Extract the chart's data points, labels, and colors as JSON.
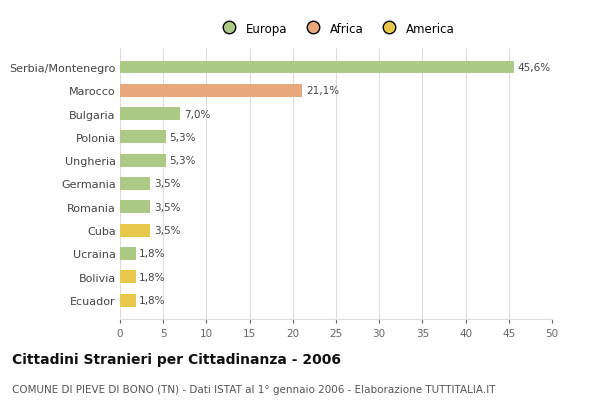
{
  "categories": [
    "Serbia/Montenegro",
    "Marocco",
    "Bulgaria",
    "Polonia",
    "Ungheria",
    "Germania",
    "Romania",
    "Cuba",
    "Ucraina",
    "Bolivia",
    "Ecuador"
  ],
  "values": [
    45.6,
    21.1,
    7.0,
    5.3,
    5.3,
    3.5,
    3.5,
    3.5,
    1.8,
    1.8,
    1.8
  ],
  "labels": [
    "45,6%",
    "21,1%",
    "7,0%",
    "5,3%",
    "5,3%",
    "3,5%",
    "3,5%",
    "3,5%",
    "1,8%",
    "1,8%",
    "1,8%"
  ],
  "colors": [
    "#adc986",
    "#e8a87c",
    "#adc986",
    "#adc986",
    "#adc986",
    "#adc986",
    "#adc986",
    "#e8c84a",
    "#adc986",
    "#e8c84a",
    "#e8c84a"
  ],
  "legend": [
    {
      "label": "Europa",
      "color": "#adc986"
    },
    {
      "label": "Africa",
      "color": "#e8a87c"
    },
    {
      "label": "America",
      "color": "#e8c84a"
    }
  ],
  "xlim": [
    0,
    50
  ],
  "xticks": [
    0,
    5,
    10,
    15,
    20,
    25,
    30,
    35,
    40,
    45,
    50
  ],
  "title": "Cittadini Stranieri per Cittadinanza - 2006",
  "subtitle": "COMUNE DI PIEVE DI BONO (TN) - Dati ISTAT al 1° gennaio 2006 - Elaborazione TUTTITALIA.IT",
  "title_fontsize": 10,
  "subtitle_fontsize": 7.5,
  "background_color": "#ffffff",
  "grid_color": "#dddddd",
  "bar_height": 0.55,
  "label_fontsize": 7.5,
  "ytick_fontsize": 8,
  "xtick_fontsize": 7.5
}
